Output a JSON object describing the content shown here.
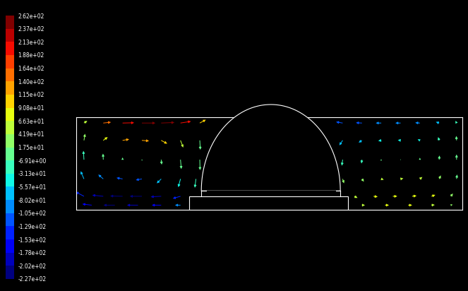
{
  "chart_data": {
    "type": "vector",
    "xlim": [
      0,
      10
    ],
    "ylim": [
      0,
      2.4
    ],
    "tick_labels": false,
    "colorbar": {
      "range": [
        -227,
        262
      ],
      "ticks": [
        {
          "value": -227,
          "label": "-2.27e+02"
        },
        {
          "value": -202,
          "label": "-2.02e+02"
        },
        {
          "value": -178,
          "label": "-1.78e+02"
        },
        {
          "value": -153,
          "label": "-1.53e+02"
        },
        {
          "value": -129,
          "label": "-1.29e+02"
        },
        {
          "value": -105,
          "label": "-1.05e+02"
        },
        {
          "value": -80.2,
          "label": "-8.02e+01"
        },
        {
          "value": -55.7,
          "label": "-5.57e+01"
        },
        {
          "value": -31.3,
          "label": "-3.13e+01"
        },
        {
          "value": -6.91,
          "label": "-6.91e+00"
        },
        {
          "value": 17.5,
          "label": "1.75e+01"
        },
        {
          "value": 41.9,
          "label": "4.19e+01"
        },
        {
          "value": 66.3,
          "label": "6.63e+01"
        },
        {
          "value": 90.8,
          "label": "9.08e+01"
        },
        {
          "value": 115,
          "label": "1.15e+02"
        },
        {
          "value": 140,
          "label": "1.40e+02"
        },
        {
          "value": 164,
          "label": "1.64e+02"
        },
        {
          "value": 188,
          "label": "1.88e+02"
        },
        {
          "value": 213,
          "label": "2.13e+02"
        },
        {
          "value": 237,
          "label": "2.37e+02"
        },
        {
          "value": 262,
          "label": "2.62e+02"
        }
      ]
    },
    "vectors": {
      "x": [
        0.2,
        0.7,
        1.2,
        1.7,
        2.2,
        2.7,
        3.2,
        0.2,
        0.7,
        1.2,
        1.7,
        2.2,
        2.7,
        3.2,
        0.2,
        0.7,
        1.2,
        1.7,
        2.2,
        2.7,
        3.2,
        0.2,
        0.7,
        1.2,
        1.7,
        2.2,
        2.7,
        3.1,
        0.2,
        0.7,
        1.2,
        1.7,
        2.2,
        2.7,
        0.4,
        1.0,
        1.6,
        2.2,
        2.7,
        6.9,
        7.4,
        7.9,
        8.4,
        8.9,
        9.4,
        9.85,
        6.9,
        7.4,
        7.9,
        8.4,
        8.9,
        9.4,
        9.85,
        6.9,
        7.4,
        7.9,
        8.4,
        8.9,
        9.4,
        9.85,
        6.9,
        7.4,
        7.9,
        8.4,
        8.9,
        9.4,
        9.85,
        7.2,
        7.7,
        8.2,
        8.7,
        9.2,
        9.7,
        7.4,
        8.0,
        8.6,
        9.2,
        9.7
      ],
      "y": [
        2.25,
        2.25,
        2.25,
        2.25,
        2.25,
        2.25,
        2.25,
        1.8,
        1.8,
        1.8,
        1.8,
        1.8,
        1.8,
        1.8,
        1.3,
        1.3,
        1.3,
        1.3,
        1.3,
        1.3,
        1.3,
        0.8,
        0.8,
        0.8,
        0.8,
        0.8,
        0.8,
        0.8,
        0.35,
        0.35,
        0.35,
        0.35,
        0.35,
        0.35,
        0.12,
        0.12,
        0.12,
        0.12,
        0.12,
        2.25,
        2.25,
        2.25,
        2.25,
        2.25,
        2.25,
        2.25,
        1.8,
        1.8,
        1.8,
        1.8,
        1.8,
        1.8,
        1.8,
        1.3,
        1.3,
        1.3,
        1.3,
        1.3,
        1.3,
        1.3,
        0.8,
        0.8,
        0.8,
        0.8,
        0.8,
        0.8,
        0.8,
        0.35,
        0.35,
        0.35,
        0.35,
        0.35,
        0.35,
        0.12,
        0.12,
        0.12,
        0.12,
        0.12
      ],
      "u": [
        60,
        140,
        210,
        245,
        240,
        190,
        110,
        20,
        80,
        120,
        130,
        110,
        50,
        10,
        -10,
        -5,
        0,
        5,
        10,
        15,
        5,
        -60,
        -90,
        -110,
        -110,
        -80,
        -40,
        -20,
        -150,
        -200,
        -225,
        -220,
        -190,
        -140,
        -170,
        -205,
        -200,
        -170,
        -100,
        -120,
        -110,
        -100,
        -95,
        -85,
        -60,
        -20,
        -60,
        -60,
        -55,
        -50,
        -40,
        -20,
        -5,
        -15,
        -10,
        -5,
        0,
        0,
        5,
        0,
        25,
        35,
        45,
        50,
        45,
        30,
        10,
        60,
        75,
        80,
        80,
        70,
        40,
        55,
        70,
        70,
        60,
        35
      ],
      "v": [
        40,
        15,
        5,
        0,
        10,
        30,
        60,
        120,
        60,
        20,
        -10,
        -60,
        -130,
        -170,
        160,
        110,
        40,
        -20,
        -90,
        -170,
        -190,
        140,
        80,
        20,
        -20,
        -80,
        -150,
        -160,
        80,
        20,
        5,
        0,
        -10,
        -40,
        20,
        0,
        0,
        0,
        0,
        20,
        5,
        0,
        0,
        5,
        20,
        40,
        -90,
        -40,
        -10,
        5,
        20,
        60,
        80,
        -110,
        -70,
        -25,
        5,
        35,
        75,
        95,
        -80,
        -50,
        -15,
        10,
        35,
        65,
        80,
        -30,
        -10,
        0,
        10,
        25,
        50,
        0,
        0,
        0,
        5,
        10
      ]
    }
  }
}
